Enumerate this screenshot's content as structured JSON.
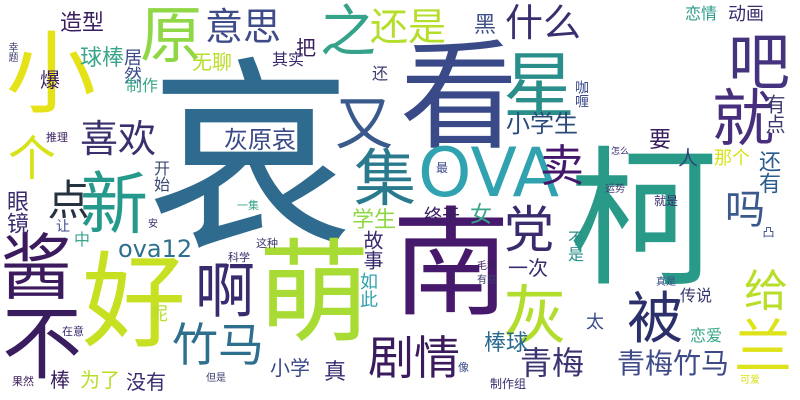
{
  "words": [
    {
      "text": "哀",
      "color": "#2f6b8e"
    },
    {
      "text": "柯",
      "color": "#2a9a88"
    },
    {
      "text": "看",
      "color": "#3a4a89"
    },
    {
      "text": "南",
      "color": "#46196c"
    },
    {
      "text": "好",
      "color": "#c7e022"
    },
    {
      "text": "萌",
      "color": "#a8db34"
    },
    {
      "text": "酱",
      "color": "#3b1a5e"
    },
    {
      "text": "小",
      "color": "#e6e218"
    },
    {
      "text": "星",
      "color": "#2a8f8a"
    },
    {
      "text": "OVA",
      "color": "#30a2b0"
    },
    {
      "text": "灰",
      "color": "#b2dd2c"
    },
    {
      "text": "不",
      "color": "#3a1d5e"
    },
    {
      "text": "新",
      "color": "#24998c"
    },
    {
      "text": "吧",
      "color": "#45337f"
    },
    {
      "text": "就",
      "color": "#472f7d"
    },
    {
      "text": "集",
      "color": "#2a7a8e"
    },
    {
      "text": "原",
      "color": "#8fd744"
    },
    {
      "text": "又",
      "color": "#3a5a8c"
    },
    {
      "text": "啊",
      "color": "#3a2a6e"
    },
    {
      "text": "被",
      "color": "#2b2f6a"
    },
    {
      "text": "意思",
      "color": "#3f4c8a"
    },
    {
      "text": "之",
      "color": "#35a38a"
    },
    {
      "text": "还是",
      "color": "#b5de2b"
    },
    {
      "text": "什么",
      "color": "#3a2f6e"
    },
    {
      "text": "喜欢",
      "color": "#3b2f6e"
    },
    {
      "text": "个",
      "color": "#d8e218"
    },
    {
      "text": "党",
      "color": "#3b2a6e"
    },
    {
      "text": "卖",
      "color": "#44176c"
    },
    {
      "text": "点",
      "color": "#25323f"
    },
    {
      "text": "竹马",
      "color": "#2f6f8e"
    },
    {
      "text": "剧情",
      "color": "#3b1a5e"
    },
    {
      "text": "兰",
      "color": "#dde318"
    },
    {
      "text": "给",
      "color": "#b8de29"
    },
    {
      "text": "吗",
      "color": "#3b5a8c"
    },
    {
      "text": "青梅",
      "color": "#3a3570"
    },
    {
      "text": "青梅竹马",
      "color": "#3f4a88"
    },
    {
      "text": "灰原哀",
      "color": "#3a4a89"
    },
    {
      "text": "ova12",
      "color": "#2f6f8e"
    },
    {
      "text": "小学生",
      "color": "#2a4a7a"
    },
    {
      "text": "造型",
      "color": "#3a1d5e"
    },
    {
      "text": "球棒",
      "color": "#3aa58a"
    },
    {
      "text": "黑",
      "color": "#3e4f8c"
    },
    {
      "text": "恋情",
      "color": "#2a9a88"
    },
    {
      "text": "动画",
      "color": "#3a2a6e"
    },
    {
      "text": "把",
      "color": "#3a1d5e"
    },
    {
      "text": "居然",
      "color": "#3a4a89"
    },
    {
      "text": "无聊",
      "color": "#b8de29"
    },
    {
      "text": "其实",
      "color": "#3a2a6e"
    },
    {
      "text": "还",
      "color": "#3a3a6e"
    },
    {
      "text": "爆",
      "color": "#3a1d5e"
    },
    {
      "text": "制作",
      "color": "#3aa58a"
    },
    {
      "text": "咖喱",
      "color": "#3a4a89"
    },
    {
      "text": "有点",
      "color": "#3a3a6e"
    },
    {
      "text": "要",
      "color": "#3a1d5e"
    },
    {
      "text": "人",
      "color": "#2a4a7a"
    },
    {
      "text": "那个",
      "color": "#d8e218"
    },
    {
      "text": "还有",
      "color": "#2a5a8e"
    },
    {
      "text": "眼镜",
      "color": "#3a2a6e"
    },
    {
      "text": "开始",
      "color": "#3a4a6e"
    },
    {
      "text": "学生",
      "color": "#8fd744"
    },
    {
      "text": "终于",
      "color": "#3a1d5e"
    },
    {
      "text": "女",
      "color": "#3aa58a"
    },
    {
      "text": "故事",
      "color": "#3a2a6e"
    },
    {
      "text": "不是",
      "color": "#2a8f8a"
    },
    {
      "text": "一次",
      "color": "#3a2a6e"
    },
    {
      "text": "如此",
      "color": "#30a2b0"
    },
    {
      "text": "太",
      "color": "#3a4a89"
    },
    {
      "text": "棒球",
      "color": "#2a6a8e"
    },
    {
      "text": "传说",
      "color": "#3a3a6e"
    },
    {
      "text": "恋爱",
      "color": "#3aa58a"
    },
    {
      "text": "小学",
      "color": "#3a4a89"
    },
    {
      "text": "真",
      "color": "#3a2a6e"
    },
    {
      "text": "棒",
      "color": "#3a1d5e"
    },
    {
      "text": "为了",
      "color": "#b8de29"
    },
    {
      "text": "没有",
      "color": "#3a2a6e"
    },
    {
      "text": "呢",
      "color": "#b8de29"
    },
    {
      "text": "中",
      "color": "#3aa58a"
    },
    {
      "text": "让",
      "color": "#3a4a89"
    },
    {
      "text": "推理",
      "color": "#3a1d5e"
    },
    {
      "text": "幸题",
      "color": "#3a3a6e"
    },
    {
      "text": "最",
      "color": "#3a4a89"
    },
    {
      "text": "怎么",
      "color": "#3a2a6e"
    },
    {
      "text": "运势",
      "color": "#3a3a6e"
    },
    {
      "text": "就是",
      "color": "#3a2a6e"
    },
    {
      "text": "一集",
      "color": "#3aa58a"
    },
    {
      "text": "科学",
      "color": "#3a2a6e"
    },
    {
      "text": "这种",
      "color": "#3a3a6e"
    },
    {
      "text": "毛利",
      "color": "#3a1d5e"
    },
    {
      "text": "有意",
      "color": "#3a3a6e"
    },
    {
      "text": "真是",
      "color": "#3a4a89"
    },
    {
      "text": "在意",
      "color": "#3a2a6e"
    },
    {
      "text": "果然",
      "color": "#3a1d5e"
    },
    {
      "text": "但是",
      "color": "#3a3a6e"
    },
    {
      "text": "像",
      "color": "#3a4a89"
    },
    {
      "text": "制作组",
      "color": "#3a2a6e"
    },
    {
      "text": "可爱",
      "color": "#d8e218"
    },
    {
      "text": "凸",
      "color": "#3a4a89"
    },
    {
      "text": "安",
      "color": "#3a2a6e"
    }
  ]
}
